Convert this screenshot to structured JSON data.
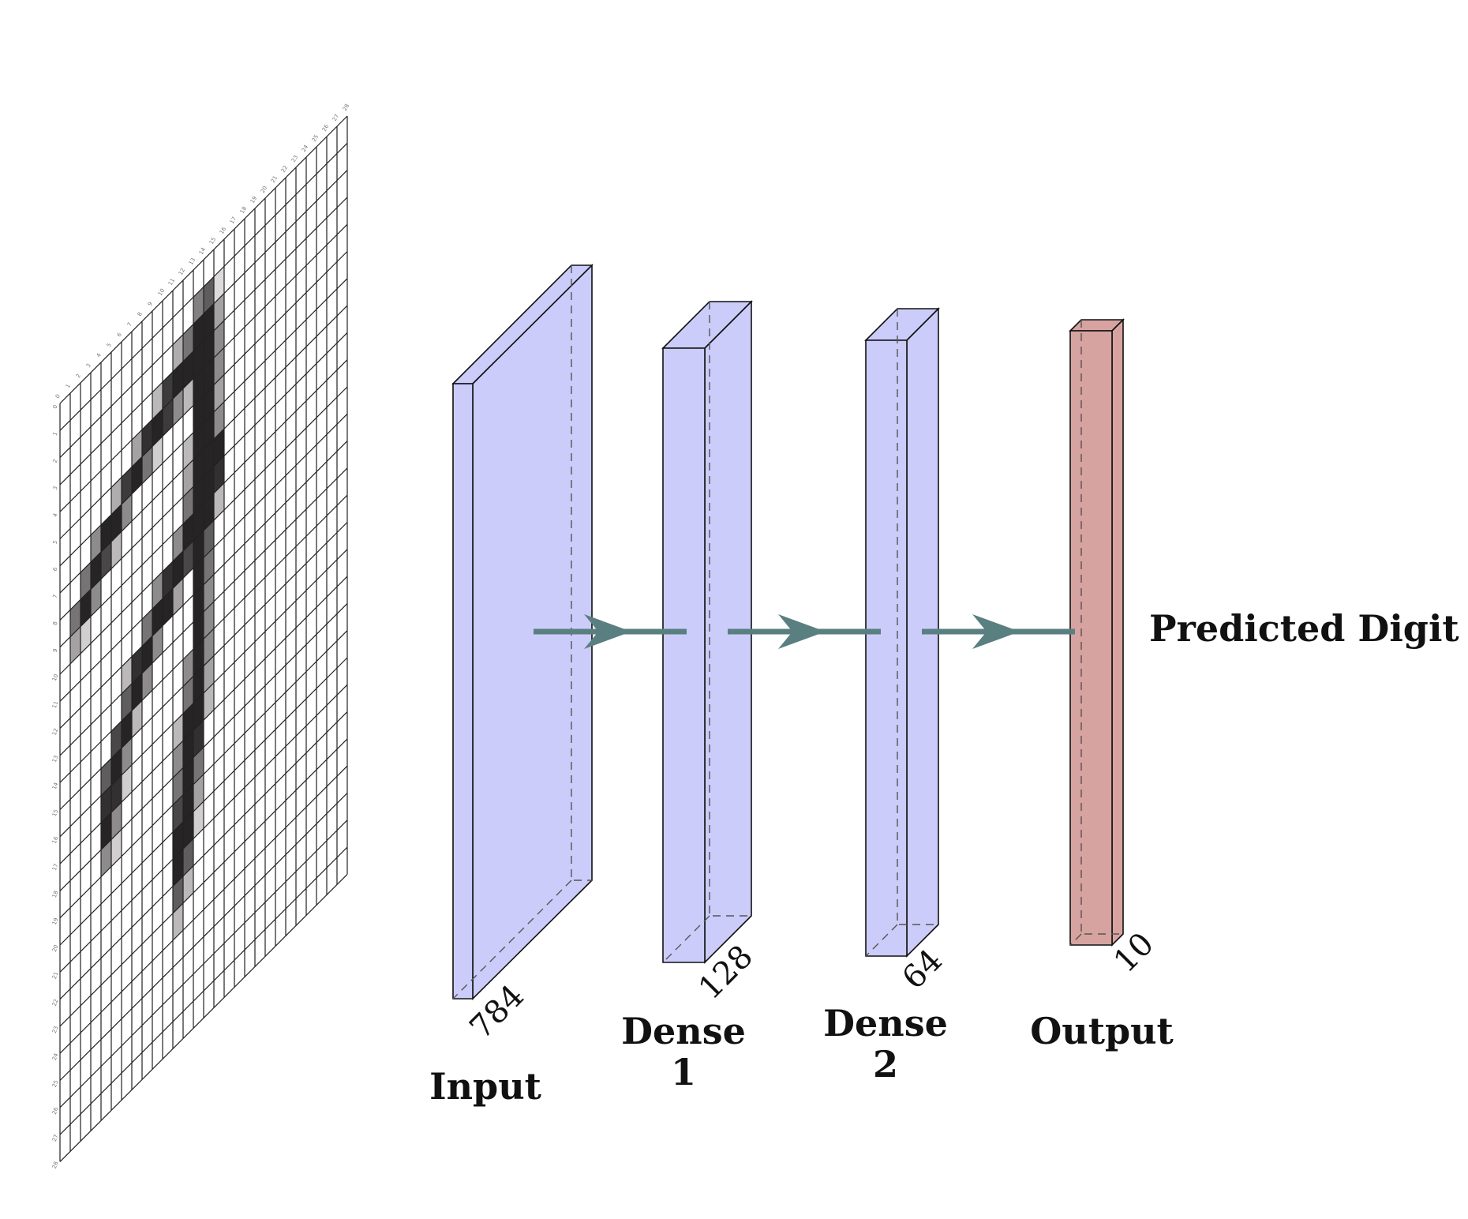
{
  "diagram": {
    "grid": {
      "rows": 28,
      "cols": 28,
      "col_ticks": [
        "0",
        "1",
        "2",
        "3",
        "4",
        "5",
        "6",
        "7",
        "8",
        "9",
        "10",
        "11",
        "12",
        "13",
        "14",
        "15",
        "16",
        "17",
        "18",
        "19",
        "20",
        "21",
        "22",
        "23",
        "24",
        "25",
        "26",
        "27",
        "28"
      ],
      "row_ticks": [
        "0",
        "1",
        "2",
        "3",
        "4",
        "5",
        "6",
        "7",
        "8",
        "9",
        "10",
        "11",
        "12",
        "13",
        "14",
        "15",
        "16",
        "17",
        "18",
        "19",
        "20",
        "21",
        "22",
        "23",
        "24",
        "25",
        "26",
        "27",
        "28"
      ],
      "pixels": [
        [
          1,
          13,
          0.55
        ],
        [
          1,
          14,
          0.7
        ],
        [
          1,
          15,
          0.15
        ],
        [
          2,
          11,
          0.35
        ],
        [
          2,
          12,
          0.6
        ],
        [
          2,
          13,
          0.95
        ],
        [
          2,
          14,
          0.95
        ],
        [
          2,
          15,
          0.4
        ],
        [
          3,
          9,
          0.3
        ],
        [
          3,
          10,
          0.85
        ],
        [
          3,
          11,
          0.95
        ],
        [
          3,
          12,
          0.95
        ],
        [
          3,
          13,
          0.95
        ],
        [
          3,
          14,
          0.95
        ],
        [
          3,
          15,
          0.5
        ],
        [
          4,
          7,
          0.4
        ],
        [
          4,
          8,
          0.9
        ],
        [
          4,
          9,
          0.95
        ],
        [
          4,
          10,
          0.85
        ],
        [
          4,
          11,
          0.5
        ],
        [
          4,
          12,
          0.3
        ],
        [
          4,
          13,
          0.95
        ],
        [
          4,
          14,
          0.95
        ],
        [
          4,
          15,
          0.5
        ],
        [
          5,
          5,
          0.35
        ],
        [
          5,
          6,
          0.85
        ],
        [
          5,
          7,
          0.95
        ],
        [
          5,
          8,
          0.6
        ],
        [
          5,
          9,
          0.2
        ],
        [
          5,
          13,
          0.95
        ],
        [
          5,
          14,
          0.95
        ],
        [
          5,
          15,
          0.4
        ],
        [
          6,
          3,
          0.5
        ],
        [
          6,
          4,
          0.95
        ],
        [
          6,
          5,
          0.95
        ],
        [
          6,
          6,
          0.5
        ],
        [
          6,
          12,
          0.3
        ],
        [
          6,
          13,
          0.95
        ],
        [
          6,
          14,
          0.95
        ],
        [
          6,
          15,
          0.5
        ],
        [
          7,
          2,
          0.6
        ],
        [
          7,
          3,
          0.95
        ],
        [
          7,
          4,
          0.8
        ],
        [
          7,
          5,
          0.3
        ],
        [
          7,
          12,
          0.4
        ],
        [
          7,
          13,
          0.95
        ],
        [
          7,
          14,
          0.95
        ],
        [
          7,
          15,
          0.95
        ],
        [
          8,
          1,
          0.6
        ],
        [
          8,
          2,
          0.95
        ],
        [
          8,
          3,
          0.5
        ],
        [
          8,
          12,
          0.6
        ],
        [
          8,
          13,
          0.95
        ],
        [
          8,
          14,
          0.95
        ],
        [
          8,
          15,
          0.9
        ],
        [
          9,
          1,
          0.4
        ],
        [
          9,
          2,
          0.2
        ],
        [
          9,
          11,
          0.5
        ],
        [
          9,
          12,
          0.95
        ],
        [
          9,
          13,
          0.95
        ],
        [
          9,
          14,
          0.95
        ],
        [
          9,
          15,
          0.3
        ],
        [
          10,
          9,
          0.5
        ],
        [
          10,
          10,
          0.9
        ],
        [
          10,
          11,
          0.95
        ],
        [
          10,
          12,
          0.8
        ],
        [
          10,
          13,
          0.95
        ],
        [
          10,
          14,
          0.7
        ],
        [
          11,
          8,
          0.6
        ],
        [
          11,
          9,
          0.95
        ],
        [
          11,
          10,
          0.95
        ],
        [
          11,
          11,
          0.4
        ],
        [
          11,
          13,
          0.95
        ],
        [
          11,
          14,
          0.6
        ],
        [
          12,
          6,
          0.3
        ],
        [
          12,
          7,
          0.9
        ],
        [
          12,
          8,
          0.95
        ],
        [
          12,
          9,
          0.5
        ],
        [
          12,
          13,
          0.95
        ],
        [
          12,
          14,
          0.5
        ],
        [
          13,
          6,
          0.7
        ],
        [
          13,
          7,
          0.95
        ],
        [
          13,
          8,
          0.5
        ],
        [
          13,
          13,
          0.95
        ],
        [
          13,
          14,
          0.5
        ],
        [
          14,
          5,
          0.8
        ],
        [
          14,
          6,
          0.95
        ],
        [
          14,
          7,
          0.3
        ],
        [
          14,
          12,
          0.5
        ],
        [
          14,
          13,
          0.95
        ],
        [
          14,
          14,
          0.5
        ],
        [
          15,
          4,
          0.7
        ],
        [
          15,
          5,
          0.95
        ],
        [
          15,
          6,
          0.5
        ],
        [
          15,
          12,
          0.6
        ],
        [
          15,
          13,
          0.95
        ],
        [
          15,
          14,
          0.4
        ],
        [
          16,
          4,
          0.9
        ],
        [
          16,
          5,
          0.9
        ],
        [
          16,
          6,
          0.2
        ],
        [
          16,
          11,
          0.3
        ],
        [
          16,
          12,
          0.95
        ],
        [
          16,
          13,
          0.95
        ],
        [
          16,
          14,
          0.3
        ],
        [
          17,
          4,
          0.95
        ],
        [
          17,
          5,
          0.5
        ],
        [
          17,
          11,
          0.5
        ],
        [
          17,
          12,
          0.95
        ],
        [
          17,
          13,
          0.9
        ],
        [
          18,
          4,
          0.5
        ],
        [
          18,
          5,
          0.2
        ],
        [
          18,
          11,
          0.6
        ],
        [
          18,
          12,
          0.95
        ],
        [
          18,
          13,
          0.6
        ],
        [
          19,
          11,
          0.8
        ],
        [
          19,
          12,
          0.95
        ],
        [
          19,
          13,
          0.4
        ],
        [
          20,
          11,
          0.95
        ],
        [
          20,
          12,
          0.95
        ],
        [
          20,
          13,
          0.2
        ],
        [
          21,
          11,
          0.95
        ],
        [
          21,
          12,
          0.7
        ],
        [
          22,
          11,
          0.7
        ],
        [
          22,
          12,
          0.3
        ],
        [
          23,
          11,
          0.3
        ]
      ]
    },
    "layers": [
      {
        "id": "input",
        "label": "Input",
        "size": "784",
        "color": "#ccccfb"
      },
      {
        "id": "dense1",
        "label": "Dense 1",
        "size": "128",
        "color": "#ccccfb"
      },
      {
        "id": "dense2",
        "label": "Dense 2",
        "size": "64",
        "color": "#ccccfb"
      },
      {
        "id": "output",
        "label": "Output",
        "size": "10",
        "color": "#d6a3a0"
      }
    ],
    "output_label": "Predicted Digit",
    "arrow_color": "#5a7f80",
    "edge_color": "#111111"
  }
}
